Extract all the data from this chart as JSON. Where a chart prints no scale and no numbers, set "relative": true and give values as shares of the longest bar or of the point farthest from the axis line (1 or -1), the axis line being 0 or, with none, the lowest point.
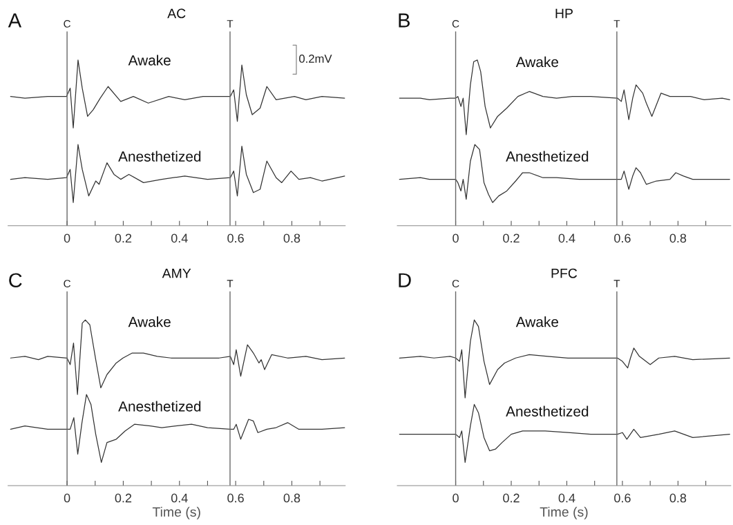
{
  "chart_data": [
    {
      "type": "line",
      "title": "AC",
      "relative": true,
      "xlim": [
        -0.21,
        0.99
      ],
      "xticks": [
        0,
        {
          "value": 0.1,
          "label": null
        },
        0.2,
        {
          "value": 0.3,
          "label": null
        },
        0.4,
        {
          "value": 0.5,
          "label": null
        },
        0.6,
        {
          "value": 0.7,
          "label": null
        },
        0.8,
        {
          "value": 0.9,
          "label": null
        }
      ],
      "tick_labels": "x",
      "grid": false,
      "annotations": [
        "A",
        "0.2mV"
      ],
      "ref_lines": [
        {
          "axis": "x",
          "value": 0,
          "label": "C",
          "color": "#666666"
        },
        {
          "axis": "x",
          "value": 0.58,
          "label": "T",
          "color": "#666666"
        }
      ],
      "series": [
        {
          "name": "Awake",
          "color": "#333333",
          "x": [
            -0.201,
            -0.15,
            -0.069,
            -0.002,
            0.011,
            0.022,
            0.039,
            0.054,
            0.073,
            0.093,
            0.118,
            0.146,
            0.191,
            0.236,
            0.289,
            0.362,
            0.419,
            0.484,
            0.541,
            0.581,
            0.593,
            0.606,
            0.622,
            0.638,
            0.659,
            0.687,
            0.711,
            0.744,
            0.809,
            0.85,
            0.907,
            0.988
          ],
          "values": [
            0.78,
            0.77,
            0.78,
            0.78,
            0.83,
            0.59,
            1.0,
            0.83,
            0.66,
            0.7,
            0.77,
            0.84,
            0.75,
            0.78,
            0.74,
            0.78,
            0.76,
            0.78,
            0.78,
            0.78,
            0.82,
            0.63,
            0.97,
            0.79,
            0.67,
            0.71,
            0.84,
            0.76,
            0.78,
            0.76,
            0.78,
            0.77
          ]
        },
        {
          "name": "Anesthetized",
          "color": "#333333",
          "x": [
            -0.201,
            -0.15,
            -0.069,
            -0.002,
            0.011,
            0.022,
            0.039,
            0.054,
            0.077,
            0.102,
            0.114,
            0.142,
            0.167,
            0.191,
            0.22,
            0.272,
            0.337,
            0.419,
            0.5,
            0.581,
            0.593,
            0.606,
            0.622,
            0.638,
            0.663,
            0.687,
            0.711,
            0.744,
            0.764,
            0.797,
            0.825,
            0.866,
            0.907,
            0.988
          ],
          "values": [
            0.28,
            0.29,
            0.28,
            0.29,
            0.34,
            0.14,
            0.49,
            0.34,
            0.18,
            0.27,
            0.25,
            0.38,
            0.31,
            0.28,
            0.31,
            0.26,
            0.28,
            0.3,
            0.28,
            0.29,
            0.33,
            0.18,
            0.48,
            0.31,
            0.2,
            0.22,
            0.39,
            0.29,
            0.26,
            0.33,
            0.28,
            0.29,
            0.27,
            0.3
          ]
        }
      ]
    },
    {
      "type": "line",
      "title": "HP",
      "relative": true,
      "xlim": [
        -0.21,
        0.99
      ],
      "xticks": [
        0,
        {
          "value": 0.1,
          "label": null
        },
        0.2,
        {
          "value": 0.3,
          "label": null
        },
        0.4,
        {
          "value": 0.5,
          "label": null
        },
        0.6,
        {
          "value": 0.7,
          "label": null
        },
        0.8,
        {
          "value": 0.9,
          "label": null
        }
      ],
      "tick_labels": "x",
      "grid": false,
      "annotations": [
        "B"
      ],
      "ref_lines": [
        {
          "axis": "x",
          "value": 0,
          "label": "C",
          "color": "#666666"
        },
        {
          "axis": "x",
          "value": 0.58,
          "label": "T",
          "color": "#666666"
        }
      ],
      "series": [
        {
          "name": "Awake",
          "color": "#333333",
          "x": [
            -0.202,
            -0.127,
            -0.094,
            -0.02,
            0,
            0.008,
            0.019,
            0.027,
            0.038,
            0.053,
            0.065,
            0.078,
            0.09,
            0.106,
            0.125,
            0.151,
            0.184,
            0.224,
            0.265,
            0.314,
            0.363,
            0.42,
            0.486,
            0.582,
            0.596,
            0.606,
            0.623,
            0.637,
            0.649,
            0.673,
            0.686,
            0.706,
            0.739,
            0.771,
            0.845,
            0.894,
            0.959,
            0.986
          ],
          "values": [
            0.77,
            0.77,
            0.76,
            0.77,
            0.77,
            0.78,
            0.72,
            0.77,
            0.55,
            0.85,
            0.99,
            1.0,
            0.93,
            0.72,
            0.59,
            0.66,
            0.71,
            0.78,
            0.81,
            0.78,
            0.77,
            0.78,
            0.78,
            0.77,
            0.75,
            0.82,
            0.64,
            0.77,
            0.85,
            0.8,
            0.74,
            0.66,
            0.8,
            0.78,
            0.78,
            0.76,
            0.77,
            0.76
          ]
        },
        {
          "name": "Anesthetized",
          "color": "#333333",
          "x": [
            -0.202,
            -0.127,
            -0.094,
            -0.02,
            0,
            0.008,
            0.019,
            0.027,
            0.038,
            0.053,
            0.069,
            0.086,
            0.102,
            0.118,
            0.133,
            0.155,
            0.184,
            0.216,
            0.241,
            0.265,
            0.314,
            0.363,
            0.445,
            0.527,
            0.582,
            0.596,
            0.606,
            0.623,
            0.637,
            0.649,
            0.665,
            0.686,
            0.722,
            0.771,
            0.792,
            0.82,
            0.853,
            0.935,
            0.986
          ],
          "values": [
            0.28,
            0.29,
            0.28,
            0.28,
            0.28,
            0.26,
            0.21,
            0.28,
            0.16,
            0.39,
            0.49,
            0.46,
            0.26,
            0.19,
            0.14,
            0.18,
            0.21,
            0.27,
            0.32,
            0.32,
            0.29,
            0.29,
            0.28,
            0.28,
            0.28,
            0.28,
            0.33,
            0.22,
            0.3,
            0.35,
            0.32,
            0.25,
            0.27,
            0.28,
            0.32,
            0.3,
            0.28,
            0.28,
            0.28
          ]
        }
      ]
    },
    {
      "type": "line",
      "title": "AMY",
      "relative": true,
      "xlim": [
        -0.21,
        0.99
      ],
      "xticks": [
        0,
        {
          "value": 0.1,
          "label": null
        },
        0.2,
        {
          "value": 0.3,
          "label": null
        },
        0.4,
        {
          "value": 0.5,
          "label": null
        },
        0.6,
        {
          "value": 0.7,
          "label": null
        },
        0.8,
        {
          "value": 0.9,
          "label": null
        }
      ],
      "tick_labels": "x",
      "grid": false,
      "xlabel": "Time (s)",
      "annotations": [
        "C"
      ],
      "ref_lines": [
        {
          "axis": "x",
          "value": 0,
          "label": "C",
          "color": "#666666"
        },
        {
          "axis": "x",
          "value": 0.58,
          "label": "T",
          "color": "#666666"
        }
      ],
      "series": [
        {
          "name": "Awake",
          "color": "#333333",
          "x": [
            -0.201,
            -0.15,
            -0.102,
            -0.069,
            0,
            0.011,
            0.023,
            0.037,
            0.054,
            0.065,
            0.081,
            0.102,
            0.12,
            0.142,
            0.175,
            0.199,
            0.232,
            0.272,
            0.321,
            0.37,
            0.419,
            0.484,
            0.541,
            0.581,
            0.593,
            0.602,
            0.618,
            0.642,
            0.663,
            0.683,
            0.691,
            0.703,
            0.728,
            0.785,
            0.85,
            0.907,
            0.988
          ],
          "values": [
            0.77,
            0.78,
            0.76,
            0.78,
            0.77,
            0.73,
            0.86,
            0.55,
            0.98,
            1.0,
            0.97,
            0.76,
            0.59,
            0.67,
            0.74,
            0.77,
            0.8,
            0.8,
            0.78,
            0.77,
            0.77,
            0.77,
            0.77,
            0.78,
            0.73,
            0.82,
            0.66,
            0.85,
            0.8,
            0.74,
            0.76,
            0.7,
            0.79,
            0.77,
            0.78,
            0.76,
            0.77
          ]
        },
        {
          "name": "Anesthetized",
          "color": "#333333",
          "x": [
            -0.201,
            -0.15,
            -0.069,
            0,
            0.011,
            0.024,
            0.038,
            0.053,
            0.069,
            0.085,
            0.102,
            0.122,
            0.142,
            0.175,
            0.207,
            0.24,
            0.297,
            0.337,
            0.386,
            0.443,
            0.5,
            0.581,
            0.593,
            0.602,
            0.618,
            0.646,
            0.663,
            0.679,
            0.711,
            0.744,
            0.785,
            0.825,
            0.907,
            0.988
          ],
          "values": [
            0.34,
            0.36,
            0.34,
            0.34,
            0.34,
            0.41,
            0.19,
            0.38,
            0.55,
            0.49,
            0.31,
            0.14,
            0.26,
            0.28,
            0.33,
            0.37,
            0.36,
            0.35,
            0.36,
            0.37,
            0.35,
            0.34,
            0.34,
            0.37,
            0.28,
            0.4,
            0.39,
            0.32,
            0.34,
            0.35,
            0.38,
            0.34,
            0.34,
            0.35
          ]
        }
      ]
    },
    {
      "type": "line",
      "title": "PFC",
      "relative": true,
      "xlim": [
        -0.21,
        0.99
      ],
      "xticks": [
        0,
        {
          "value": 0.1,
          "label": null
        },
        0.2,
        {
          "value": 0.3,
          "label": null
        },
        0.4,
        {
          "value": 0.5,
          "label": null
        },
        0.6,
        {
          "value": 0.7,
          "label": null
        },
        0.8,
        {
          "value": 0.9,
          "label": null
        }
      ],
      "tick_labels": "x",
      "grid": false,
      "xlabel": "Time (s)",
      "annotations": [
        "D"
      ],
      "ref_lines": [
        {
          "axis": "x",
          "value": 0,
          "label": "C",
          "color": "#666666"
        },
        {
          "axis": "x",
          "value": 0.58,
          "label": "T",
          "color": "#666666"
        }
      ],
      "series": [
        {
          "name": "Awake",
          "color": "#333333",
          "x": [
            -0.202,
            -0.127,
            -0.078,
            -0.02,
            0,
            0.014,
            0.022,
            0.034,
            0.053,
            0.067,
            0.082,
            0.102,
            0.122,
            0.151,
            0.176,
            0.216,
            0.265,
            0.331,
            0.404,
            0.486,
            0.582,
            0.6,
            0.619,
            0.629,
            0.641,
            0.661,
            0.7,
            0.731,
            0.788,
            0.853,
            0.986
          ],
          "values": [
            0.77,
            0.78,
            0.77,
            0.78,
            0.77,
            0.75,
            0.82,
            0.53,
            0.87,
            1.0,
            0.96,
            0.75,
            0.61,
            0.7,
            0.74,
            0.77,
            0.79,
            0.78,
            0.77,
            0.77,
            0.77,
            0.75,
            0.71,
            0.77,
            0.83,
            0.78,
            0.73,
            0.77,
            0.78,
            0.76,
            0.77
          ]
        },
        {
          "name": "Anesthetized",
          "color": "#333333",
          "x": [
            -0.202,
            -0.127,
            -0.078,
            -0.02,
            0,
            0.014,
            0.022,
            0.034,
            0.053,
            0.067,
            0.082,
            0.102,
            0.122,
            0.143,
            0.167,
            0.2,
            0.241,
            0.322,
            0.404,
            0.486,
            0.582,
            0.6,
            0.616,
            0.641,
            0.665,
            0.731,
            0.788,
            0.853,
            0.986
          ],
          "values": [
            0.31,
            0.31,
            0.31,
            0.31,
            0.31,
            0.29,
            0.33,
            0.14,
            0.36,
            0.49,
            0.44,
            0.29,
            0.21,
            0.22,
            0.26,
            0.31,
            0.33,
            0.33,
            0.32,
            0.31,
            0.31,
            0.32,
            0.28,
            0.34,
            0.29,
            0.31,
            0.33,
            0.29,
            0.31
          ]
        }
      ]
    }
  ]
}
